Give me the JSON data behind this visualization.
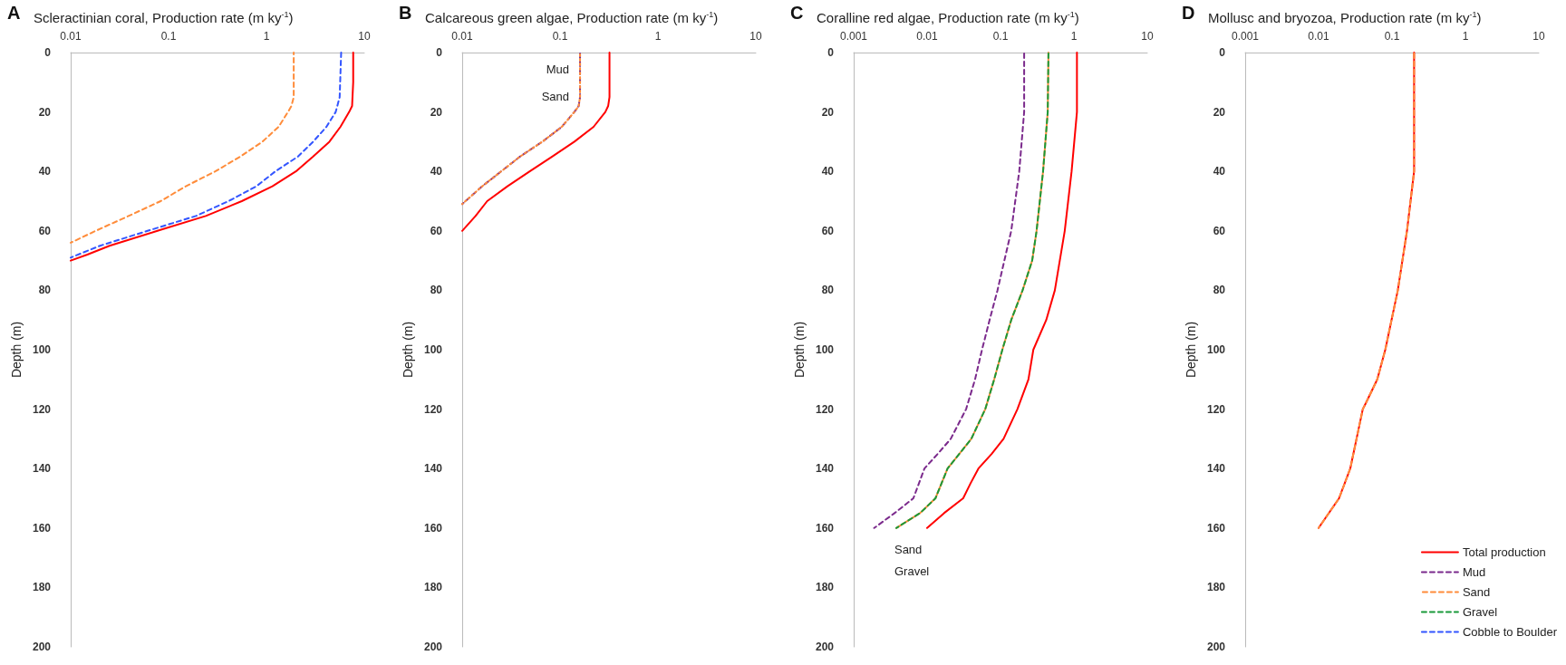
{
  "chart_data": [
    {
      "type": "line",
      "title": "Scleractinian coral, Production rate (m ky$^{-1}$)",
      "annotations": [
        "A"
      ],
      "ylabel": "Depth (m)",
      "log": "x",
      "xlim": [
        0.01,
        10
      ],
      "xticks": [
        0.01,
        0.1,
        1,
        10
      ],
      "ylim": [
        200,
        0
      ],
      "yticks": [
        0,
        20,
        40,
        60,
        80,
        100,
        120,
        140,
        160,
        180,
        200
      ],
      "grid": false,
      "legend": false,
      "marker": "none",
      "series": [
        {
          "color": "#ff0000",
          "line_style": "solid",
          "x": [
            7.7,
            7.7,
            7.5,
            7.0,
            5.7,
            4.4,
            3.0,
            2.0,
            1.15,
            0.56,
            0.24,
            0.077,
            0.025,
            0.0148,
            0.01
          ],
          "values": [
            0,
            10,
            18,
            20,
            25,
            30,
            35,
            40,
            45,
            50,
            55,
            60,
            65,
            68,
            70
          ]
        },
        {
          "color": "#ff8c3a",
          "line_style": "dashed",
          "x": [
            1.9,
            1.9,
            1.8,
            1.66,
            1.33,
            0.91,
            0.54,
            0.3,
            0.15,
            0.083,
            0.039,
            0.018,
            0.01
          ],
          "values": [
            0,
            15,
            18,
            20,
            25,
            30,
            35,
            40,
            45,
            50,
            55,
            60,
            64
          ]
        },
        {
          "color": "#3355ff",
          "line_style": "dashed",
          "x": [
            5.8,
            5.6,
            5.1,
            4.1,
            3.0,
            2.1,
            1.23,
            0.79,
            0.41,
            0.19,
            0.061,
            0.02,
            0.01
          ],
          "values": [
            0,
            15,
            20,
            25,
            30,
            35,
            40,
            45,
            50,
            55,
            60,
            65,
            69
          ]
        }
      ]
    },
    {
      "type": "line",
      "title": "Calcareous green algae, Production rate (m ky$^{-1}$)",
      "annotations": [
        "B",
        "Mud",
        "Sand"
      ],
      "ylabel": "Depth (m)",
      "log": "x",
      "xlim": [
        0.01,
        10
      ],
      "xticks": [
        0.01,
        0.1,
        1,
        10
      ],
      "ylim": [
        200,
        0
      ],
      "yticks": [
        0,
        20,
        40,
        60,
        80,
        100,
        120,
        140,
        160,
        180,
        200
      ],
      "grid": false,
      "legend": false,
      "marker": "none",
      "series": [
        {
          "color": "#ff0000",
          "line_style": "solid",
          "x": [
            0.32,
            0.32,
            0.31,
            0.29,
            0.22,
            0.14,
            0.083,
            0.049,
            0.029,
            0.018,
            0.0137,
            0.01
          ],
          "values": [
            0,
            15,
            18,
            20,
            25,
            30,
            35,
            40,
            45,
            50,
            55,
            60
          ]
        },
        {
          "color": "#7b2a8c",
          "line_style": "dashed",
          "x": [
            0.16,
            0.16,
            0.155,
            0.14,
            0.104,
            0.066,
            0.039,
            0.025,
            0.016,
            0.01
          ],
          "values": [
            0,
            15,
            18,
            20,
            25,
            30,
            35,
            40,
            45,
            51
          ]
        },
        {
          "color": "#ff8c3a",
          "line_style": "dotted",
          "x": [
            0.16,
            0.16,
            0.155,
            0.14,
            0.104,
            0.066,
            0.039,
            0.025,
            0.016,
            0.01
          ],
          "values": [
            0,
            15,
            18,
            20,
            25,
            30,
            35,
            40,
            45,
            51
          ]
        }
      ]
    },
    {
      "type": "line",
      "title": "Coralline red algae, Production rate (m ky$^{-1}$)",
      "annotations": [
        "C",
        "Sand",
        "Gravel"
      ],
      "ylabel": "Depth (m)",
      "log": "x",
      "xlim": [
        0.001,
        10
      ],
      "xticks": [
        0.001,
        0.01,
        0.1,
        1,
        10
      ],
      "ylim": [
        200,
        0
      ],
      "yticks": [
        0,
        20,
        40,
        60,
        80,
        100,
        120,
        140,
        160,
        180,
        200
      ],
      "grid": false,
      "legend": false,
      "marker": "none",
      "series": [
        {
          "color": "#ff0000",
          "line_style": "solid",
          "x": [
            1.1,
            1.1,
            0.93,
            0.75,
            0.55,
            0.42,
            0.28,
            0.24,
            0.17,
            0.11,
            0.076,
            0.05,
            0.039,
            0.031,
            0.017,
            0.01
          ],
          "values": [
            0,
            20,
            40,
            60,
            80,
            90,
            100,
            110,
            120,
            130,
            135,
            140,
            145,
            150,
            155,
            160
          ]
        },
        {
          "color": "#7b2a8c",
          "line_style": "dashed",
          "x": [
            0.21,
            0.21,
            0.18,
            0.14,
            0.091,
            0.071,
            0.056,
            0.045,
            0.034,
            0.021,
            0.014,
            0.0092,
            0.0065,
            0.0036,
            0.0019
          ],
          "values": [
            0,
            20,
            40,
            60,
            80,
            90,
            100,
            110,
            120,
            130,
            135,
            140,
            150,
            155,
            160
          ]
        },
        {
          "color": "#ff8c3a",
          "line_style": "solid",
          "x": [
            0.45,
            0.44,
            0.38,
            0.31,
            0.27,
            0.2,
            0.14,
            0.106,
            0.082,
            0.062,
            0.04,
            0.019,
            0.013,
            0.008,
            0.0038
          ],
          "values": [
            0,
            20,
            40,
            60,
            70,
            80,
            90,
            100,
            110,
            120,
            130,
            140,
            150,
            155,
            160
          ]
        },
        {
          "color": "#1a9a3a",
          "line_style": "dashed",
          "x": [
            0.45,
            0.44,
            0.38,
            0.31,
            0.27,
            0.2,
            0.14,
            0.106,
            0.082,
            0.062,
            0.04,
            0.019,
            0.013,
            0.008,
            0.0038
          ],
          "values": [
            0,
            20,
            40,
            60,
            70,
            80,
            90,
            100,
            110,
            120,
            130,
            140,
            150,
            155,
            160
          ]
        }
      ]
    },
    {
      "type": "line",
      "title": "Mollusc and bryozoa, Production rate (m ky$^{-1}$)",
      "annotations": [
        "D"
      ],
      "ylabel": "Depth (m)",
      "log": "x",
      "xlim": [
        0.001,
        10
      ],
      "xticks": [
        0.001,
        0.01,
        0.1,
        1,
        10
      ],
      "ylim": [
        200,
        0
      ],
      "yticks": [
        0,
        20,
        40,
        60,
        80,
        100,
        120,
        140,
        160,
        180,
        200
      ],
      "grid": false,
      "legend": "bottom right",
      "marker": "none",
      "series": [
        {
          "name": "Total production",
          "color": "#ff0000",
          "line_style": "solid",
          "x": [
            0.2,
            0.2,
            0.16,
            0.12,
            0.081,
            0.063,
            0.044,
            0.04,
            0.027,
            0.019,
            0.01
          ],
          "values": [
            0,
            40,
            60,
            80,
            100,
            110,
            118,
            120,
            140,
            150,
            160
          ]
        },
        {
          "name": "Mud",
          "color": "#7b2a8c",
          "line_style": "dashed"
        },
        {
          "name": "Sand",
          "color": "#ff8c3a",
          "line_style": "dashed",
          "x": [
            0.2,
            0.2,
            0.16,
            0.12,
            0.081,
            0.063,
            0.044,
            0.04,
            0.027,
            0.019,
            0.01
          ],
          "values": [
            0,
            40,
            60,
            80,
            100,
            110,
            118,
            120,
            140,
            150,
            160
          ]
        },
        {
          "name": "Gravel",
          "color": "#1a9a3a",
          "line_style": "dashed"
        },
        {
          "name": "Cobble to Boulder",
          "color": "#3355ff",
          "line_style": "dashed"
        }
      ]
    }
  ]
}
